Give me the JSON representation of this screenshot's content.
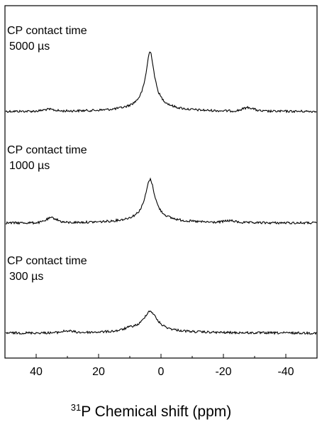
{
  "chart_data": {
    "type": "line",
    "xlabel_sup": "31",
    "xlabel": "P Chemical shift (ppm)",
    "xlim": [
      50,
      -50
    ],
    "x_reversed": true,
    "xticks": [
      40,
      20,
      0,
      -20,
      -40
    ],
    "xtick_labels": [
      "40",
      "20",
      "0",
      "-20",
      "-40"
    ],
    "grid": false,
    "series": [
      {
        "label_line1": "CP contact time",
        "label_line2": "5000 µs",
        "peak_ppm": 3.5,
        "peak_height": 1.0,
        "peak_width_ppm": 1.6,
        "small_bumps": [
          {
            "ppm": 36,
            "h": 0.03
          },
          {
            "ppm": -28,
            "h": 0.06
          }
        ]
      },
      {
        "label_line1": "CP contact time",
        "label_line2": "1000 µs",
        "peak_ppm": 3.5,
        "peak_height": 0.73,
        "peak_width_ppm": 1.8,
        "small_bumps": [
          {
            "ppm": 35,
            "h": 0.08
          },
          {
            "ppm": -22,
            "h": 0.03
          }
        ]
      },
      {
        "label_line1": "CP contact time",
        "label_line2": "300 µs",
        "peak_ppm": 3.5,
        "peak_height": 0.37,
        "peak_width_ppm": 2.6,
        "small_bumps": [
          {
            "ppm": 30,
            "h": 0.03
          },
          {
            "ppm": 10,
            "h": 0.03
          }
        ]
      }
    ]
  }
}
